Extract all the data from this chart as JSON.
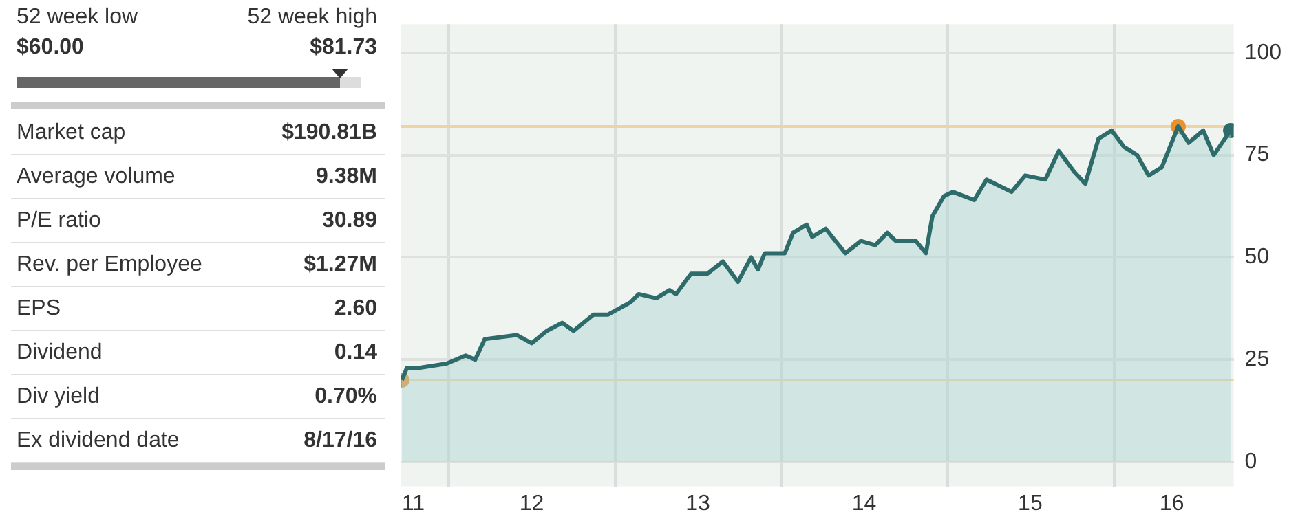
{
  "chart_data": [
    {
      "type": "other",
      "annotations": [
        "52 week low",
        "$60.00",
        "52 week high",
        "$81.73"
      ],
      "categories": [
        "Market cap",
        "Average volume",
        "P/E ratio",
        "Rev. per Employee",
        "EPS",
        "Dividend",
        "Div yield",
        "Ex dividend date"
      ],
      "value_labels": [
        "$190.81B",
        "9.38M",
        "30.89",
        "$1.27M",
        "2.60",
        "0.14",
        "0.70%",
        "8/17/16"
      ]
    },
    {
      "type": "area",
      "xlim": [
        "2011-09-17",
        "2016-09-20"
      ],
      "ylim": [
        -6,
        107
      ],
      "xticks": [
        {
          "value": "2011-10-15",
          "label": "11"
        },
        {
          "value": "2012-01-01",
          "label": null
        },
        {
          "value": "2012-07-01",
          "label": "12"
        },
        {
          "value": "2013-01-01",
          "label": null
        },
        {
          "value": "2013-07-01",
          "label": "13"
        },
        {
          "value": "2014-01-01",
          "label": null
        },
        {
          "value": "2014-07-01",
          "label": "14"
        },
        {
          "value": "2015-01-01",
          "label": null
        },
        {
          "value": "2015-07-01",
          "label": "15"
        },
        {
          "value": "2016-01-01",
          "label": null
        },
        {
          "value": "2016-05-07",
          "label": "16"
        }
      ],
      "yticks": [
        0,
        25,
        50,
        75,
        100
      ],
      "grid": true,
      "legend": false,
      "ref_lines": [
        {
          "axis": "y",
          "value": 82,
          "color": "#f0d3a4"
        },
        {
          "axis": "y",
          "value": 20,
          "color": "#f0d3a4"
        }
      ],
      "series": [
        {
          "type": "area",
          "color": "#2e6b6b",
          "x": [
            "2011-09-20",
            "2011-10-01",
            "2011-10-30",
            "2011-12-27",
            "2012-02-07",
            "2012-02-28",
            "2012-03-20",
            "2012-05-29",
            "2012-07-01",
            "2012-08-03",
            "2012-09-06",
            "2012-10-01",
            "2012-11-14",
            "2012-12-16",
            "2013-02-03",
            "2013-02-21",
            "2013-04-01",
            "2013-04-30",
            "2013-05-14",
            "2013-06-16",
            "2013-07-22",
            "2013-08-25",
            "2013-09-27",
            "2013-10-26",
            "2013-11-10",
            "2013-11-25",
            "2014-01-08",
            "2014-01-26",
            "2014-02-25",
            "2014-03-09",
            "2014-04-08",
            "2014-04-22",
            "2014-05-21",
            "2014-06-24",
            "2014-07-26",
            "2014-08-21",
            "2014-09-09",
            "2014-10-23",
            "2014-11-14",
            "2014-11-28",
            "2014-12-24",
            "2015-01-12",
            "2015-02-28",
            "2015-03-27",
            "2015-05-21",
            "2015-06-20",
            "2015-08-03",
            "2015-09-02",
            "2015-10-05",
            "2015-10-30",
            "2015-11-28",
            "2015-12-27",
            "2016-01-23",
            "2016-02-21",
            "2016-03-17",
            "2016-04-15",
            "2016-05-21",
            "2016-06-13",
            "2016-07-15",
            "2016-08-07",
            "2016-09-13"
          ],
          "values": [
            20,
            23,
            23,
            24,
            26,
            25,
            30,
            31,
            29,
            32,
            34,
            32,
            36,
            36,
            39,
            41,
            40,
            42,
            41,
            46,
            46,
            49,
            44,
            50,
            47,
            51,
            51,
            56,
            58,
            55,
            57,
            55,
            51,
            54,
            53,
            56,
            54,
            54,
            51,
            60,
            65,
            66,
            64,
            69,
            66,
            70,
            69,
            76,
            71,
            68,
            79,
            81,
            77,
            75,
            70,
            72,
            82,
            78,
            81,
            75,
            81
          ]
        },
        {
          "type": "scatter",
          "marker": "circle",
          "x": [
            "2011-09-20",
            "2016-05-21",
            "2016-09-13"
          ],
          "values": [
            20,
            82,
            81
          ],
          "colors": [
            "#e8912d",
            "#e8912d",
            "#2e6b6b"
          ]
        }
      ]
    }
  ]
}
